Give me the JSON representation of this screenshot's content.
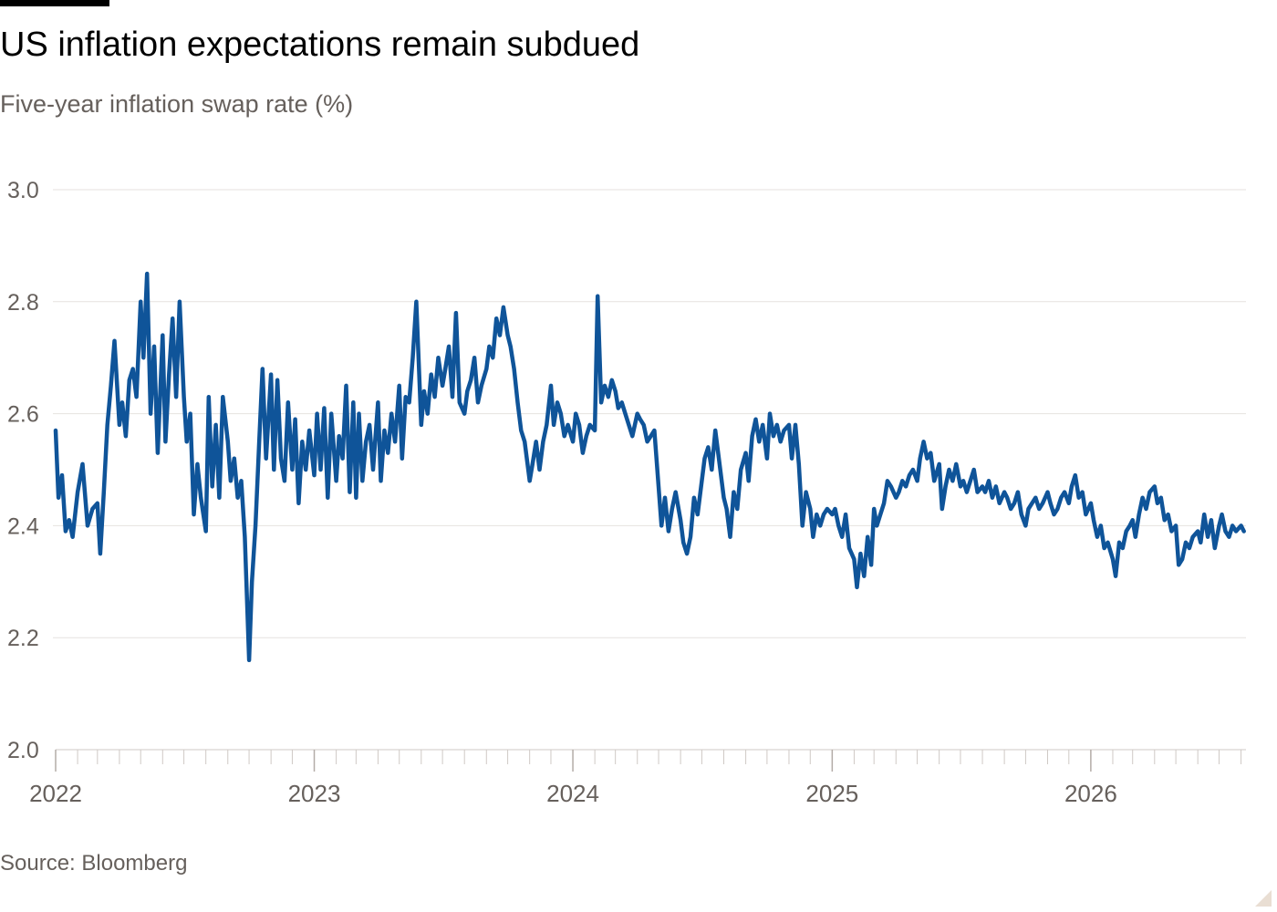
{
  "title": "US inflation expectations remain subdued",
  "subtitle": "Five-year inflation swap rate (%)",
  "source": "Source: Bloomberg",
  "colors": {
    "line": "#0f5499",
    "grid": "#e6e2df",
    "axis": "#66605c",
    "tick_text": "#66605c"
  },
  "chart_data": {
    "type": "line",
    "title": "US inflation expectations remain subdued",
    "subtitle": "Five-year inflation swap rate (%)",
    "xlabel": "",
    "ylabel": "",
    "x_ticks": [
      "2022",
      "2023",
      "2024",
      "2025",
      "2026"
    ],
    "y_ticks": [
      "2.0",
      "2.2",
      "2.4",
      "2.6",
      "2.8",
      "3.0"
    ],
    "ylim": [
      2.0,
      3.0
    ],
    "xlim": [
      "2022-01-01",
      "2026-08-08"
    ],
    "grid": "horizontal",
    "legend": "none",
    "series": [
      {
        "x": [
          "2022-01-01",
          "2022-01-05",
          "2022-01-10",
          "2022-01-15",
          "2022-01-20",
          "2022-01-25",
          "2022-02-01",
          "2022-02-08",
          "2022-02-15",
          "2022-02-22",
          "2022-03-01",
          "2022-03-05",
          "2022-03-10",
          "2022-03-15",
          "2022-03-20",
          "2022-03-25",
          "2022-04-01",
          "2022-04-05",
          "2022-04-10",
          "2022-04-15",
          "2022-04-20",
          "2022-04-25",
          "2022-05-01",
          "2022-05-05",
          "2022-05-10",
          "2022-05-15",
          "2022-05-20",
          "2022-05-25",
          "2022-06-01",
          "2022-06-05",
          "2022-06-10",
          "2022-06-15",
          "2022-06-20",
          "2022-06-25",
          "2022-07-01",
          "2022-07-05",
          "2022-07-10",
          "2022-07-15",
          "2022-07-20",
          "2022-07-25",
          "2022-08-01",
          "2022-08-05",
          "2022-08-10",
          "2022-08-15",
          "2022-08-20",
          "2022-08-25",
          "2022-09-01",
          "2022-09-05",
          "2022-09-10",
          "2022-09-15",
          "2022-09-20",
          "2022-09-25",
          "2022-10-01",
          "2022-10-05",
          "2022-10-10",
          "2022-10-15",
          "2022-10-20",
          "2022-10-25",
          "2022-11-01",
          "2022-11-05",
          "2022-11-10",
          "2022-11-15",
          "2022-11-20",
          "2022-11-25",
          "2022-12-01",
          "2022-12-05",
          "2022-12-10",
          "2022-12-15",
          "2022-12-20",
          "2022-12-25",
          "2023-01-01",
          "2023-01-05",
          "2023-01-10",
          "2023-01-15",
          "2023-01-20",
          "2023-01-25",
          "2023-02-01",
          "2023-02-05",
          "2023-02-10",
          "2023-02-15",
          "2023-02-20",
          "2023-02-25",
          "2023-03-01",
          "2023-03-05",
          "2023-03-10",
          "2023-03-15",
          "2023-03-20",
          "2023-03-25",
          "2023-04-01",
          "2023-04-05",
          "2023-04-10",
          "2023-04-15",
          "2023-04-20",
          "2023-04-25",
          "2023-05-01",
          "2023-05-05",
          "2023-05-10",
          "2023-05-15",
          "2023-05-20",
          "2023-05-25",
          "2023-06-01",
          "2023-06-05",
          "2023-06-10",
          "2023-06-15",
          "2023-06-20",
          "2023-06-25",
          "2023-07-01",
          "2023-07-05",
          "2023-07-10",
          "2023-07-15",
          "2023-07-20",
          "2023-07-25",
          "2023-08-01",
          "2023-08-05",
          "2023-08-10",
          "2023-08-15",
          "2023-08-20",
          "2023-08-25",
          "2023-09-01",
          "2023-09-05",
          "2023-09-10",
          "2023-09-15",
          "2023-09-20",
          "2023-09-25",
          "2023-10-01",
          "2023-10-05",
          "2023-10-10",
          "2023-10-15",
          "2023-10-20",
          "2023-10-25",
          "2023-11-01",
          "2023-11-05",
          "2023-11-10",
          "2023-11-15",
          "2023-11-20",
          "2023-11-25",
          "2023-12-01",
          "2023-12-05",
          "2023-12-10",
          "2023-12-15",
          "2023-12-20",
          "2023-12-25",
          "2024-01-01",
          "2024-01-05",
          "2024-01-10",
          "2024-01-15",
          "2024-01-20",
          "2024-01-25",
          "2024-02-01",
          "2024-02-05",
          "2024-02-10",
          "2024-02-15",
          "2024-02-20",
          "2024-02-25",
          "2024-03-01",
          "2024-03-05",
          "2024-03-10",
          "2024-03-15",
          "2024-03-20",
          "2024-03-25",
          "2024-04-01",
          "2024-04-05",
          "2024-04-10",
          "2024-04-15",
          "2024-04-20",
          "2024-04-25",
          "2024-05-01",
          "2024-05-05",
          "2024-05-10",
          "2024-05-15",
          "2024-05-20",
          "2024-05-25",
          "2024-06-01",
          "2024-06-05",
          "2024-06-10",
          "2024-06-15",
          "2024-06-20",
          "2024-06-25",
          "2024-07-01",
          "2024-07-05",
          "2024-07-10",
          "2024-07-15",
          "2024-07-20",
          "2024-07-25",
          "2024-08-01",
          "2024-08-05",
          "2024-08-10",
          "2024-08-15",
          "2024-08-20",
          "2024-08-25",
          "2024-09-01",
          "2024-09-05",
          "2024-09-10",
          "2024-09-15",
          "2024-09-20",
          "2024-09-25",
          "2024-10-01",
          "2024-10-05",
          "2024-10-10",
          "2024-10-15",
          "2024-10-20",
          "2024-10-25",
          "2024-11-01",
          "2024-11-05",
          "2024-11-10",
          "2024-11-15",
          "2024-11-20",
          "2024-11-25",
          "2024-12-01",
          "2024-12-05",
          "2024-12-10",
          "2024-12-15",
          "2024-12-20",
          "2024-12-25",
          "2025-01-01",
          "2025-01-05",
          "2025-01-10",
          "2025-01-15",
          "2025-01-20",
          "2025-01-25",
          "2025-02-01",
          "2025-02-05",
          "2025-02-10",
          "2025-02-15",
          "2025-02-20",
          "2025-02-25",
          "2025-03-01",
          "2025-03-05",
          "2025-03-10",
          "2025-03-15",
          "2025-03-20",
          "2025-03-25",
          "2025-04-01",
          "2025-04-05",
          "2025-04-10",
          "2025-04-15",
          "2025-04-20",
          "2025-04-25",
          "2025-05-01",
          "2025-05-05",
          "2025-05-10",
          "2025-05-15",
          "2025-05-20",
          "2025-05-25",
          "2025-06-01",
          "2025-06-05",
          "2025-06-10",
          "2025-06-15",
          "2025-06-20",
          "2025-06-25",
          "2025-07-01",
          "2025-07-05",
          "2025-07-10",
          "2025-07-15",
          "2025-07-20",
          "2025-07-25",
          "2025-08-01",
          "2025-08-05",
          "2025-08-10",
          "2025-08-15",
          "2025-08-20",
          "2025-08-25",
          "2025-09-01",
          "2025-09-05",
          "2025-09-10",
          "2025-09-15",
          "2025-09-20",
          "2025-09-25",
          "2025-10-01",
          "2025-10-05",
          "2025-10-10",
          "2025-10-15",
          "2025-10-20",
          "2025-10-25",
          "2025-11-01",
          "2025-11-05",
          "2025-11-10",
          "2025-11-15",
          "2025-11-20",
          "2025-11-25",
          "2025-12-01",
          "2025-12-05",
          "2025-12-10",
          "2025-12-15",
          "2025-12-20",
          "2025-12-25",
          "2026-01-01",
          "2026-01-05",
          "2026-01-10",
          "2026-01-15",
          "2026-01-20",
          "2026-01-25",
          "2026-02-01",
          "2026-02-05",
          "2026-02-10",
          "2026-02-15",
          "2026-02-20",
          "2026-02-25",
          "2026-03-01",
          "2026-03-05",
          "2026-03-10",
          "2026-03-15",
          "2026-03-20",
          "2026-03-25",
          "2026-04-01",
          "2026-04-05",
          "2026-04-10",
          "2026-04-15",
          "2026-04-20",
          "2026-04-25",
          "2026-05-01",
          "2026-05-05",
          "2026-05-10",
          "2026-05-15",
          "2026-05-20",
          "2026-05-25",
          "2026-06-01",
          "2026-06-05",
          "2026-06-10",
          "2026-06-15",
          "2026-06-20",
          "2026-06-25",
          "2026-07-01",
          "2026-07-05",
          "2026-07-10",
          "2026-07-15",
          "2026-07-20",
          "2026-07-25",
          "2026-08-01",
          "2026-08-05"
        ],
        "y": [
          2.57,
          2.45,
          2.49,
          2.39,
          2.41,
          2.38,
          2.46,
          2.51,
          2.4,
          2.43,
          2.44,
          2.35,
          2.46,
          2.58,
          2.65,
          2.73,
          2.58,
          2.62,
          2.56,
          2.66,
          2.68,
          2.63,
          2.8,
          2.7,
          2.85,
          2.6,
          2.72,
          2.53,
          2.74,
          2.55,
          2.67,
          2.77,
          2.63,
          2.8,
          2.63,
          2.55,
          2.6,
          2.42,
          2.51,
          2.45,
          2.39,
          2.63,
          2.47,
          2.58,
          2.45,
          2.63,
          2.55,
          2.48,
          2.52,
          2.45,
          2.48,
          2.38,
          2.16,
          2.3,
          2.4,
          2.54,
          2.68,
          2.52,
          2.67,
          2.5,
          2.66,
          2.52,
          2.48,
          2.62,
          2.5,
          2.59,
          2.44,
          2.55,
          2.5,
          2.57,
          2.49,
          2.6,
          2.5,
          2.61,
          2.45,
          2.6,
          2.48,
          2.56,
          2.52,
          2.65,
          2.46,
          2.62,
          2.45,
          2.6,
          2.48,
          2.55,
          2.58,
          2.5,
          2.62,
          2.48,
          2.57,
          2.53,
          2.6,
          2.55,
          2.65,
          2.52,
          2.63,
          2.62,
          2.7,
          2.8,
          2.58,
          2.64,
          2.6,
          2.67,
          2.63,
          2.7,
          2.65,
          2.68,
          2.72,
          2.63,
          2.78,
          2.62,
          2.6,
          2.64,
          2.66,
          2.7,
          2.62,
          2.65,
          2.68,
          2.72,
          2.7,
          2.77,
          2.74,
          2.79,
          2.74,
          2.72,
          2.68,
          2.62,
          2.57,
          2.55,
          2.48,
          2.51,
          2.55,
          2.5,
          2.55,
          2.58,
          2.65,
          2.58,
          2.62,
          2.6,
          2.56,
          2.58,
          2.55,
          2.6,
          2.58,
          2.53,
          2.56,
          2.58,
          2.57,
          2.81,
          2.62,
          2.65,
          2.63,
          2.66,
          2.64,
          2.61,
          2.62,
          2.6,
          2.58,
          2.56,
          2.6,
          2.59,
          2.58,
          2.55,
          2.56,
          2.57,
          2.47,
          2.4,
          2.45,
          2.39,
          2.43,
          2.46,
          2.41,
          2.37,
          2.35,
          2.38,
          2.45,
          2.42,
          2.48,
          2.52,
          2.54,
          2.5,
          2.57,
          2.52,
          2.45,
          2.43,
          2.38,
          2.46,
          2.43,
          2.5,
          2.53,
          2.48,
          2.56,
          2.59,
          2.55,
          2.58,
          2.52,
          2.6,
          2.56,
          2.58,
          2.55,
          2.57,
          2.58,
          2.52,
          2.58,
          2.51,
          2.4,
          2.46,
          2.43,
          2.38,
          2.42,
          2.4,
          2.42,
          2.43,
          2.42,
          2.43,
          2.4,
          2.38,
          2.42,
          2.36,
          2.34,
          2.29,
          2.35,
          2.31,
          2.38,
          2.33,
          2.43,
          2.4,
          2.42,
          2.44,
          2.48,
          2.47,
          2.45,
          2.46,
          2.48,
          2.47,
          2.49,
          2.5,
          2.48,
          2.52,
          2.55,
          2.52,
          2.53,
          2.48,
          2.51,
          2.43,
          2.47,
          2.5,
          2.48,
          2.51,
          2.47,
          2.48,
          2.46,
          2.48,
          2.5,
          2.46,
          2.47,
          2.46,
          2.48,
          2.45,
          2.47,
          2.44,
          2.46,
          2.45,
          2.43,
          2.44,
          2.46,
          2.42,
          2.4,
          2.43,
          2.44,
          2.45,
          2.43,
          2.44,
          2.46,
          2.44,
          2.42,
          2.43,
          2.45,
          2.46,
          2.44,
          2.47,
          2.49,
          2.45,
          2.46,
          2.42,
          2.44,
          2.41,
          2.38,
          2.4,
          2.36,
          2.37,
          2.34,
          2.31,
          2.37,
          2.36,
          2.39,
          2.4,
          2.41,
          2.38,
          2.42,
          2.45,
          2.43,
          2.46,
          2.47,
          2.44,
          2.45,
          2.41,
          2.42,
          2.39,
          2.4,
          2.33,
          2.34,
          2.37,
          2.36,
          2.38,
          2.39,
          2.37,
          2.42,
          2.38,
          2.41,
          2.36,
          2.4,
          2.42,
          2.39,
          2.38,
          2.4,
          2.39,
          2.4,
          2.39
        ]
      }
    ]
  }
}
